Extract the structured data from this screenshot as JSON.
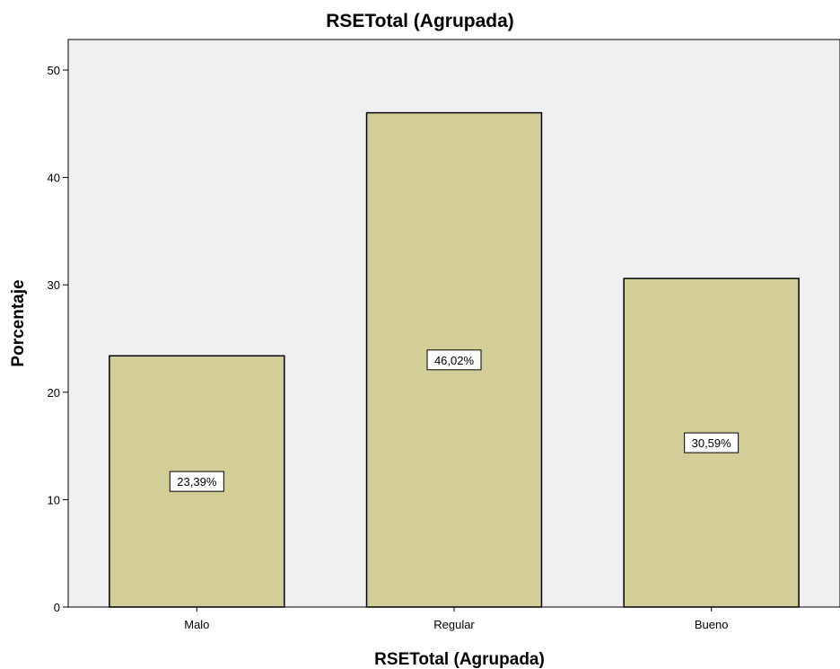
{
  "chart_data": {
    "type": "bar",
    "title": "RSETotal (Agrupada)",
    "xlabel": "RSETotal (Agrupada)",
    "ylabel": "Porcentaje",
    "categories": [
      "Malo",
      "Regular",
      "Bueno"
    ],
    "values": [
      23.39,
      46.02,
      30.59
    ],
    "data_labels": [
      "23,39%",
      "46,02%",
      "30,59%"
    ],
    "ylim": [
      0,
      50
    ],
    "yticks": [
      0,
      10,
      20,
      30,
      40,
      50
    ],
    "grid": false,
    "legend": "none",
    "colors": {
      "bar_fill": "#d3cd98",
      "bar_stroke": "#000000",
      "plot_background": "#f0f0f0",
      "page_background": "#ffffff",
      "label_box_fill": "#ffffff"
    }
  }
}
